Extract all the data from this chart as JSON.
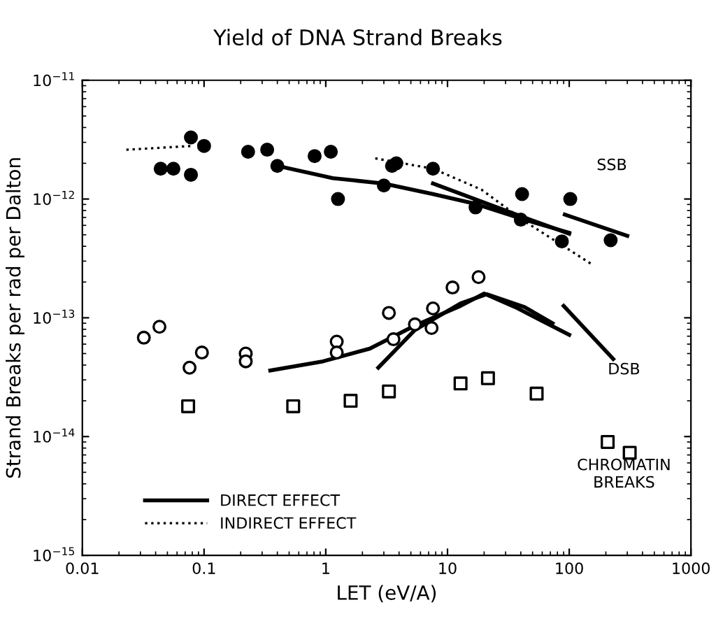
{
  "chart_data": {
    "type": "scatter",
    "title": "Yield of DNA Strand Breaks",
    "xlabel": "LET (eV/A)",
    "ylabel": "Strand Breaks per rad per Dalton",
    "log": "xy",
    "xlim": [
      0.01,
      1000
    ],
    "ylim": [
      1e-15,
      1e-11
    ],
    "xticks": [
      0.01,
      0.1,
      1,
      10,
      100,
      1000
    ],
    "yticks": [
      {
        "value": 1e-15,
        "label": "10$^{−15}$"
      },
      {
        "value": 1e-14,
        "label": "10$^{−14}$"
      },
      {
        "value": 1e-13,
        "label": "10$^{−13}$"
      },
      {
        "value": 1e-12,
        "label": "10$^{−12}$"
      },
      {
        "value": 1e-11,
        "label": "10$^{−11}$"
      }
    ],
    "grid": false,
    "legend": "bottom left",
    "annotations": [
      "SSB",
      "DSB",
      "CHROMATIN\nBREAKS"
    ],
    "series": [
      {
        "marker": "circle",
        "color": "#000000",
        "x": [
          0.044,
          0.056,
          0.078,
          0.078,
          0.1,
          0.23,
          0.33,
          0.4,
          0.81,
          1.1,
          1.26,
          3.0,
          3.5,
          3.8,
          7.6,
          17,
          41,
          40,
          102,
          87,
          219
        ],
        "values": [
          1.8e-12,
          1.8e-12,
          1.6e-12,
          3.3e-12,
          2.8e-12,
          2.5e-12,
          2.6e-12,
          1.9e-12,
          2.3e-12,
          2.5e-12,
          1e-12,
          1.3e-12,
          1.9e-12,
          2e-12,
          1.8e-12,
          8.5e-13,
          1.1e-12,
          6.7e-13,
          1e-12,
          4.4e-13,
          4.5e-13
        ]
      },
      {
        "marker": "circle",
        "color": "#ffffff",
        "x": [
          0.032,
          0.043,
          0.076,
          0.096,
          0.22,
          0.22,
          1.23,
          1.23,
          3.3,
          3.6,
          5.4,
          7.4,
          7.6,
          11,
          18
        ],
        "values": [
          6.8e-14,
          8.4e-14,
          3.8e-14,
          5.1e-14,
          5e-14,
          4.3e-14,
          6.3e-14,
          5.1e-14,
          1.1e-13,
          6.6e-14,
          8.8e-14,
          8.2e-14,
          1.2e-13,
          1.8e-13,
          2.2e-13
        ]
      },
      {
        "marker": "square",
        "color": "#ffffff",
        "x": [
          0.074,
          0.54,
          1.6,
          3.3,
          12.8,
          21.5,
          54,
          207,
          314
        ],
        "values": [
          1.8e-14,
          1.8e-14,
          2e-14,
          2.4e-14,
          2.8e-14,
          3.1e-14,
          2.3e-14,
          9e-15,
          7.3e-15
        ]
      },
      {
        "type": "line",
        "name": "DIRECT EFFECT",
        "line_style": "solid",
        "color": "#000000",
        "x": [
          0.4,
          1.14,
          3.0,
          7.6,
          17,
          43,
          100
        ],
        "values": [
          1.9e-12,
          1.5e-12,
          1.35e-12,
          1.1e-12,
          9.1e-13,
          6.7e-13,
          5.2e-13
        ]
      },
      {
        "type": "line",
        "line_style": "solid",
        "color": "#000000",
        "x": [
          7.6,
          41,
          100
        ],
        "values": [
          1.35e-12,
          7.1e-13,
          5.1e-13
        ]
      },
      {
        "type": "line",
        "line_style": "solid",
        "color": "#000000",
        "x": [
          92,
          300
        ],
        "values": [
          7.4e-13,
          4.9e-13
        ]
      },
      {
        "type": "line",
        "name": "INDIRECT EFFECT",
        "line_style": "dotted",
        "color": "#000000",
        "x": [
          0.023,
          0.08
        ],
        "values": [
          2.6e-12,
          2.8e-12
        ]
      },
      {
        "type": "line",
        "line_style": "dotted",
        "color": "#000000",
        "x": [
          2.55,
          7.6,
          19,
          43,
          155
        ],
        "values": [
          2.2e-12,
          1.8e-12,
          1.2e-12,
          6.5e-13,
          2.8e-13
        ]
      },
      {
        "type": "line",
        "line_style": "solid",
        "color": "#000000",
        "x": [
          0.35,
          0.95,
          2.3,
          5.4,
          12.8,
          20,
          36,
          100
        ],
        "values": [
          3.6e-14,
          4.3e-14,
          5.5e-14,
          8.6e-14,
          1.26e-13,
          1.6e-13,
          1.23e-13,
          7.2e-14
        ]
      },
      {
        "type": "line",
        "line_style": "solid",
        "color": "#000000",
        "x": [
          2.7,
          5.4,
          12.8,
          21,
          43,
          73
        ],
        "values": [
          3.8e-14,
          7.9e-14,
          1.32e-13,
          1.58e-13,
          1.23e-13,
          9e-14
        ]
      },
      {
        "type": "line",
        "line_style": "solid",
        "color": "#000000",
        "x": [
          90,
          230
        ],
        "values": [
          1.26e-13,
          4.5e-14
        ]
      }
    ]
  }
}
